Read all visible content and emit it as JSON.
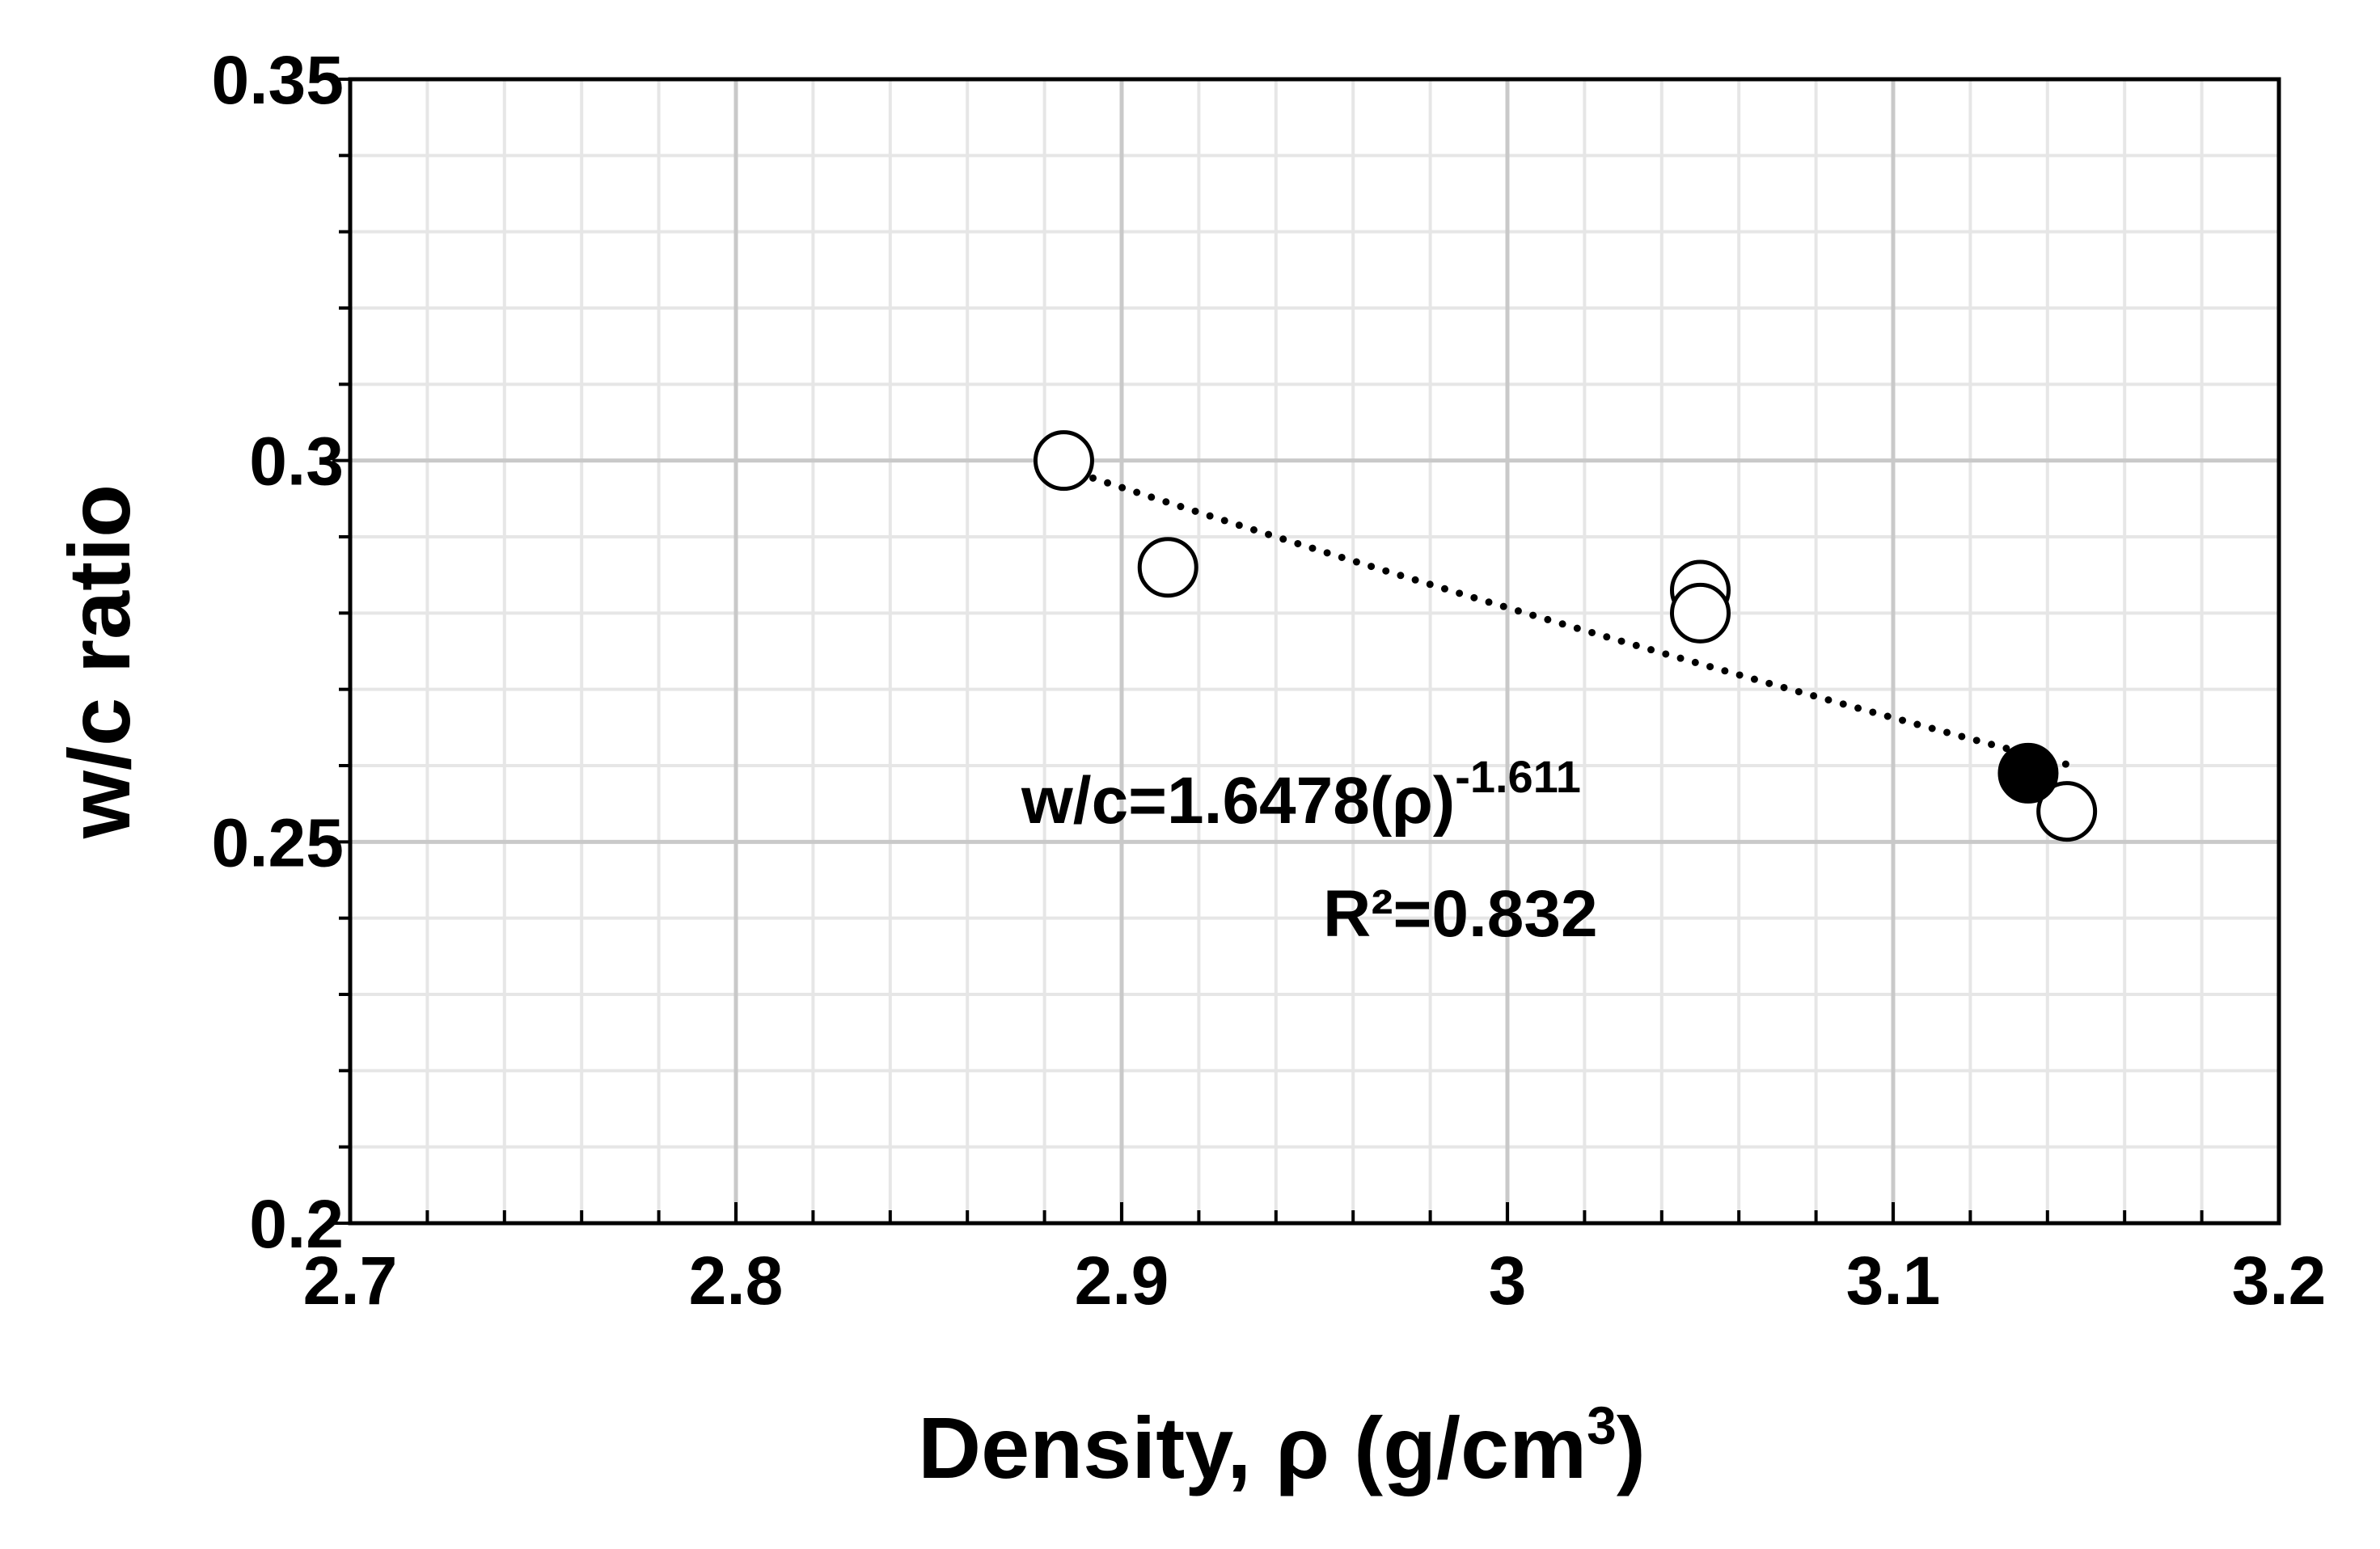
{
  "chart_data": {
    "type": "scatter",
    "xlabel_main": "Density, ρ (g/cm",
    "xlabel_sup": "3",
    "xlabel_close": ")",
    "ylabel": "w/c ratio",
    "xlim": [
      2.7,
      3.2
    ],
    "ylim": [
      0.2,
      0.35
    ],
    "x_ticks": [
      "2.7",
      "2.8",
      "2.9",
      "3",
      "3.1",
      "3.2"
    ],
    "y_ticks": [
      "0.2",
      "0.25",
      "0.3",
      "0.35"
    ],
    "x_tick_values": [
      2.7,
      2.8,
      2.9,
      3.0,
      3.1,
      3.2
    ],
    "y_tick_values": [
      0.2,
      0.25,
      0.3,
      0.35
    ],
    "x_minor_step": 0.02,
    "y_minor_step": 0.01,
    "grid": true,
    "series": [
      {
        "marker": "open-circle",
        "color": "#000000",
        "points": [
          {
            "x": 2.885,
            "y": 0.3
          },
          {
            "x": 2.912,
            "y": 0.286
          },
          {
            "x": 3.05,
            "y": 0.283
          },
          {
            "x": 3.05,
            "y": 0.28
          },
          {
            "x": 3.145,
            "y": 0.254
          }
        ]
      },
      {
        "marker": "filled-circle",
        "color": "#000000",
        "points": [
          {
            "x": 3.135,
            "y": 0.259
          }
        ]
      }
    ],
    "fit": {
      "type": "power",
      "coefficient": 1.6478,
      "exponent": -1.611,
      "x_range": [
        2.885,
        3.145
      ],
      "style": "dotted"
    },
    "annotations": {
      "equation_main": "w/c=1.6478(ρ)",
      "equation_exp": "-1.611",
      "r_squared": "R²=0.832"
    }
  }
}
